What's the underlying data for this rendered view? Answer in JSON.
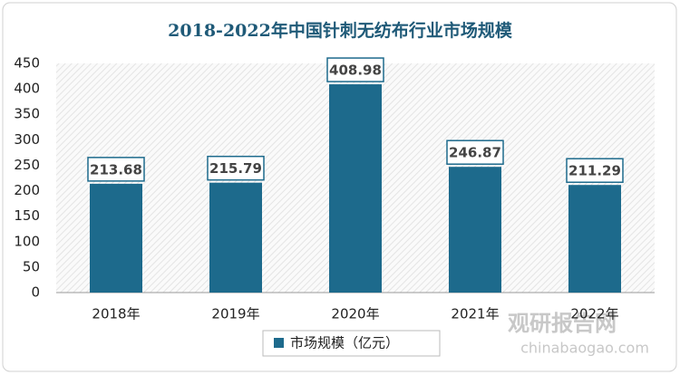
{
  "chart_data": {
    "type": "bar",
    "title": "2018-2022年中国针刺无纺布行业市场规模",
    "categories": [
      "2018年",
      "2019年",
      "2020年",
      "2021年",
      "2022年"
    ],
    "series": [
      {
        "name": "市场规模（亿元）",
        "color": "#1d6a8c",
        "values": [
          213.68,
          215.79,
          408.98,
          246.87,
          211.29
        ]
      }
    ],
    "ylim": [
      0,
      450
    ],
    "yticks": [
      0,
      50,
      100,
      150,
      200,
      250,
      300,
      350,
      400,
      450
    ],
    "grid": false,
    "legend": "bottom"
  },
  "watermark": {
    "name": "观研报告网",
    "url": "chinabaogao.com"
  }
}
